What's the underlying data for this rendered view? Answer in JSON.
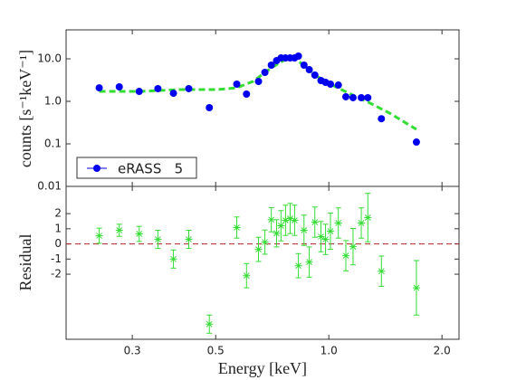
{
  "chart_data": [
    {
      "type": "scatter",
      "ylabel": "counts [s⁻¹keV⁻¹]",
      "xscale": "log",
      "yscale": "log",
      "xlim": [
        0.2,
        2.22
      ],
      "ylim": [
        0.01,
        48
      ],
      "yticks": [
        0.01,
        0.1,
        {
          "value": 1,
          "label": "1.0"
        },
        {
          "value": 10,
          "label": "10.0"
        }
      ],
      "legend": "lower left",
      "x": [
        0.245,
        0.277,
        0.313,
        0.351,
        0.386,
        0.424,
        0.481,
        0.569,
        0.604,
        0.65,
        0.676,
        0.703,
        0.726,
        0.746,
        0.767,
        0.789,
        0.811,
        0.83,
        0.859,
        0.887,
        0.918,
        0.953,
        0.98,
        1.01,
        1.06,
        1.11,
        1.16,
        1.22,
        1.27,
        1.38,
        1.71
      ],
      "series": [
        {
          "name": "eRASS   5",
          "color": "#0000ee",
          "values": [
            2.08,
            2.19,
            1.71,
            1.99,
            1.55,
            1.99,
            0.71,
            2.54,
            1.48,
            2.94,
            4.8,
            7.1,
            9.06,
            10.5,
            10.5,
            10.5,
            10.5,
            11.6,
            7.1,
            5.55,
            4.14,
            3.09,
            2.8,
            2.54,
            2.41,
            1.28,
            1.22,
            1.22,
            1.22,
            0.39,
            0.11
          ]
        }
      ],
      "model": {
        "color": "#33dd33",
        "x": [
          0.245,
          0.313,
          0.401,
          0.504,
          0.569,
          0.628,
          0.703,
          0.764,
          0.807,
          0.853,
          0.927,
          1.01,
          1.13,
          1.26,
          1.45,
          1.71
        ],
        "values": [
          1.71,
          1.71,
          1.89,
          1.89,
          2.08,
          2.94,
          6.13,
          9.52,
          10.0,
          7.45,
          3.94,
          2.54,
          1.55,
          1.0,
          0.53,
          0.22
        ]
      }
    },
    {
      "type": "scatter",
      "xlabel": "Energy [keV]",
      "ylabel": "Residual",
      "xscale": "log",
      "xlim": [
        0.2,
        2.22
      ],
      "ylim": [
        -6.3,
        3.8
      ],
      "xticks": [
        0.3,
        0.5,
        {
          "value": 1,
          "label": "1.0"
        },
        {
          "value": 2,
          "label": "2.0"
        }
      ],
      "yticks": [
        2,
        1,
        0,
        -1,
        -2
      ],
      "hline": {
        "value": 0,
        "color": "#b22222"
      },
      "x": [
        0.245,
        0.277,
        0.313,
        0.351,
        0.386,
        0.424,
        0.481,
        0.569,
        0.604,
        0.65,
        0.676,
        0.703,
        0.726,
        0.746,
        0.767,
        0.789,
        0.811,
        0.83,
        0.859,
        0.887,
        0.918,
        0.953,
        0.98,
        1.01,
        1.06,
        1.11,
        1.16,
        1.22,
        1.27,
        1.38,
        1.71
      ],
      "series": [
        {
          "color": "#33dd33",
          "values": [
            0.54,
            0.9,
            0.66,
            0.3,
            -1.0,
            0.3,
            -5.3,
            1.08,
            -2.1,
            -0.36,
            0.12,
            1.6,
            0.7,
            1.2,
            1.56,
            1.68,
            1.56,
            -1.44,
            0.9,
            -1.2,
            1.44,
            0.48,
            0.3,
            0.84,
            1.38,
            -0.78,
            -0.18,
            1.38,
            1.74,
            -1.8,
            -2.9
          ],
          "yerr": [
            0.5,
            0.4,
            0.5,
            0.6,
            0.6,
            0.6,
            0.6,
            0.7,
            0.8,
            0.8,
            0.8,
            0.8,
            0.9,
            1.0,
            1.0,
            1.0,
            1.0,
            0.8,
            1.0,
            1.0,
            1.0,
            1.0,
            1.0,
            1.2,
            1.0,
            1.0,
            1.2,
            1.0,
            1.6,
            1.0,
            1.8
          ]
        }
      ]
    }
  ]
}
